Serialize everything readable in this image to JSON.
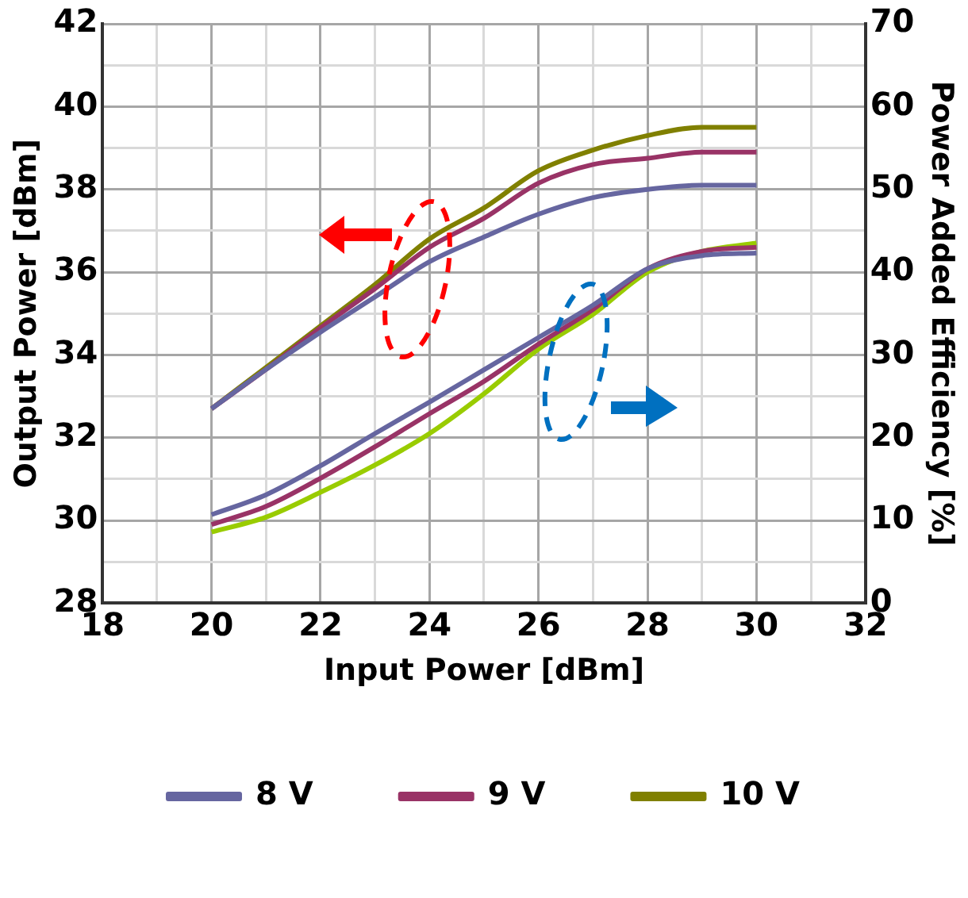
{
  "chart_data": {
    "type": "line",
    "xlabel": "Input Power [dBm]",
    "ylabel": "Output Power [dBm]",
    "y2label": "Power Added Efficiency [%]",
    "x": [
      20,
      21,
      22,
      23,
      24,
      25,
      26,
      27,
      28,
      29,
      30
    ],
    "series": [
      {
        "name": "8 V",
        "color": "#6666a0",
        "values": [
          32.7,
          33.65,
          34.55,
          35.4,
          36.25,
          36.85,
          37.4,
          37.8,
          38.0,
          38.1,
          38.1
        ]
      },
      {
        "name": "9 V",
        "color": "#993366",
        "values": [
          32.7,
          33.65,
          34.65,
          35.6,
          36.6,
          37.3,
          38.15,
          38.6,
          38.75,
          38.9,
          38.9
        ]
      },
      {
        "name": "10 V",
        "color": "#808000",
        "values": [
          32.7,
          33.7,
          34.7,
          35.7,
          36.8,
          37.55,
          38.45,
          38.95,
          39.3,
          39.5,
          39.5
        ]
      },
      {
        "color": "#6666a0",
        "axis": "y2",
        "values": [
          10.7,
          13.1,
          16.6,
          20.5,
          24.3,
          28.2,
          32.1,
          36.0,
          40.4,
          42.0,
          42.3
        ]
      },
      {
        "color": "#993366",
        "axis": "y2",
        "values": [
          9.5,
          11.7,
          15.1,
          18.9,
          22.9,
          26.8,
          31.3,
          35.5,
          40.4,
          42.5,
          43.0
        ]
      },
      {
        "color": "#99cc00",
        "axis": "y2",
        "values": [
          8.6,
          10.4,
          13.4,
          16.7,
          20.5,
          25.3,
          30.7,
          34.9,
          40.0,
          42.5,
          43.5
        ]
      }
    ],
    "xlim": [
      18,
      32
    ],
    "xticks": [
      18,
      {
        "value": 19,
        "label": null
      },
      20,
      {
        "value": 21,
        "label": null
      },
      22,
      {
        "value": 23,
        "label": null
      },
      24,
      {
        "value": 25,
        "label": null
      },
      26,
      {
        "value": 27,
        "label": null
      },
      28,
      {
        "value": 29,
        "label": null
      },
      30,
      {
        "value": 31,
        "label": null
      },
      32
    ],
    "ylim": [
      28,
      42
    ],
    "yticks": [
      28,
      {
        "value": 29,
        "label": null
      },
      30,
      {
        "value": 31,
        "label": null
      },
      32,
      {
        "value": 33,
        "label": null
      },
      34,
      {
        "value": 35,
        "label": null
      },
      36,
      {
        "value": 37,
        "label": null
      },
      38,
      {
        "value": 39,
        "label": null
      },
      40,
      {
        "value": 41,
        "label": null
      },
      42
    ],
    "y2lim": [
      0,
      70
    ],
    "y2ticks": [
      0,
      10,
      20,
      30,
      40,
      50,
      60,
      70
    ],
    "grid": true,
    "legend": "bottom",
    "marker": "none",
    "line_style": "solid"
  }
}
